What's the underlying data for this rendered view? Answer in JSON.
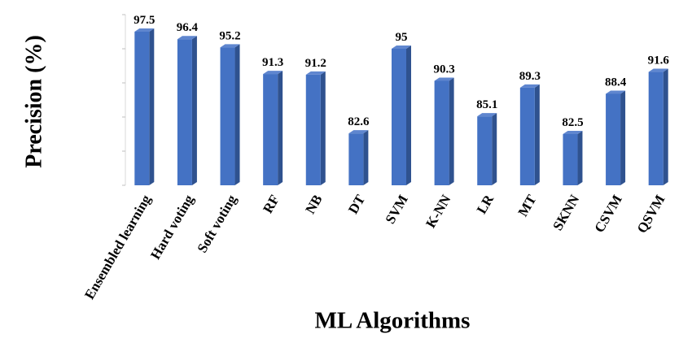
{
  "chart_data": {
    "type": "bar3d",
    "x_label": "ML Algorithms",
    "y_label": "Precision (%)",
    "categories": [
      "Ensembled learning",
      "Hard voting",
      "Soft voting",
      "RF",
      "NB",
      "DT",
      "SVM",
      "K-NN",
      "LR",
      "MT",
      "SKNN",
      "CSVM",
      "QSVM"
    ],
    "values": [
      97.5,
      96.4,
      95.2,
      91.3,
      91.2,
      82.6,
      95,
      90.3,
      85.1,
      89.3,
      82.5,
      88.4,
      91.6
    ],
    "color": "#4472c4",
    "ylim": [
      75,
      100
    ],
    "yticks": [
      75,
      80,
      85,
      90,
      95,
      100
    ]
  }
}
